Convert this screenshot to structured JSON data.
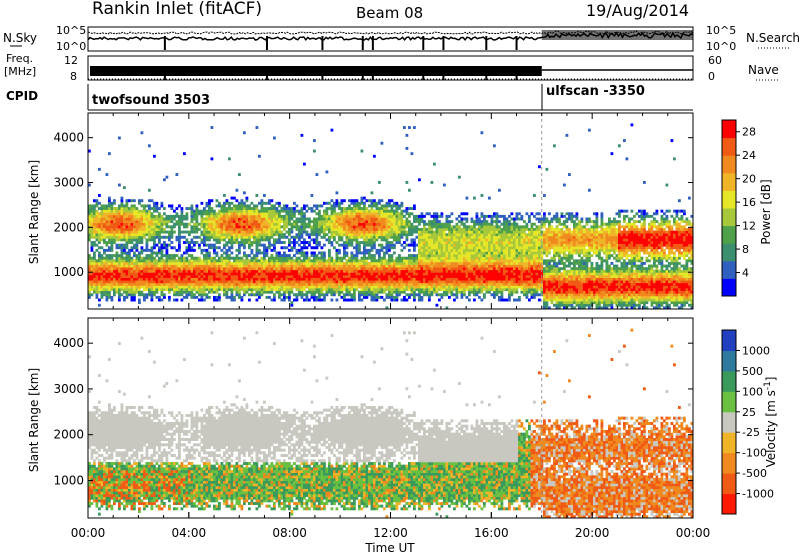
{
  "header": {
    "title": "Rankin Inlet (fitACF)",
    "beam": "Beam 08",
    "date": "19/Aug/2014"
  },
  "panels": {
    "noise": {
      "left_label": "N.Sky",
      "right_label": "N.Search",
      "left_ticks": [
        "10^5",
        "10^0"
      ],
      "right_ticks": [
        "10^5",
        "10^0"
      ]
    },
    "freq": {
      "left_label_1": "Freq.",
      "left_label_2": "[MHz]",
      "left_ticks": [
        "12",
        "8"
      ],
      "right_label": "Nave",
      "right_ticks": [
        "60",
        "0"
      ]
    },
    "cpid": {
      "label": "CPID",
      "programs": [
        {
          "name": "twofsound 3503",
          "start_hour": 0
        },
        {
          "name": "ulfscan -3350",
          "start_hour": 18
        }
      ]
    }
  },
  "chart_data": [
    {
      "type": "heatmap",
      "name": "power",
      "xlabel": "",
      "ylabel": "Slant Range [km]",
      "xlim_hours": [
        0,
        24
      ],
      "ylim_km": [
        180,
        4550
      ],
      "yticks": [
        1000,
        2000,
        3000,
        4000
      ],
      "colorbar": {
        "label": "Power [dB]",
        "range": [
          0,
          30
        ],
        "ticks": [
          4,
          8,
          12,
          16,
          20,
          24,
          28
        ],
        "colors": [
          "#0000ff",
          "#2f5fbf",
          "#3b8f6e",
          "#4fa04a",
          "#a6c83a",
          "#e6e629",
          "#f0b428",
          "#f08a1e",
          "#f05a14",
          "#ff0000"
        ]
      }
    },
    {
      "type": "heatmap",
      "name": "velocity",
      "xlabel": "Time UT",
      "ylabel": "Slant Range [km]",
      "xlim_hours": [
        0,
        24
      ],
      "ylim_km": [
        180,
        4550
      ],
      "xticks": [
        "00:00",
        "04:00",
        "08:00",
        "12:00",
        "16:00",
        "20:00",
        "00:00"
      ],
      "yticks": [
        1000,
        2000,
        3000,
        4000
      ],
      "colorbar": {
        "label": "Velocity [m s^-1]",
        "ticks": [
          "1000",
          "500",
          "100",
          "25",
          "-25",
          "-100",
          "-500",
          "-1000"
        ],
        "colors": [
          "#2040c0",
          "#2e7a9e",
          "#3a9a5c",
          "#6ac040",
          "#c8c8c0",
          "#f0b428",
          "#f08a1e",
          "#f05a14",
          "#ff1a00"
        ]
      }
    }
  ]
}
